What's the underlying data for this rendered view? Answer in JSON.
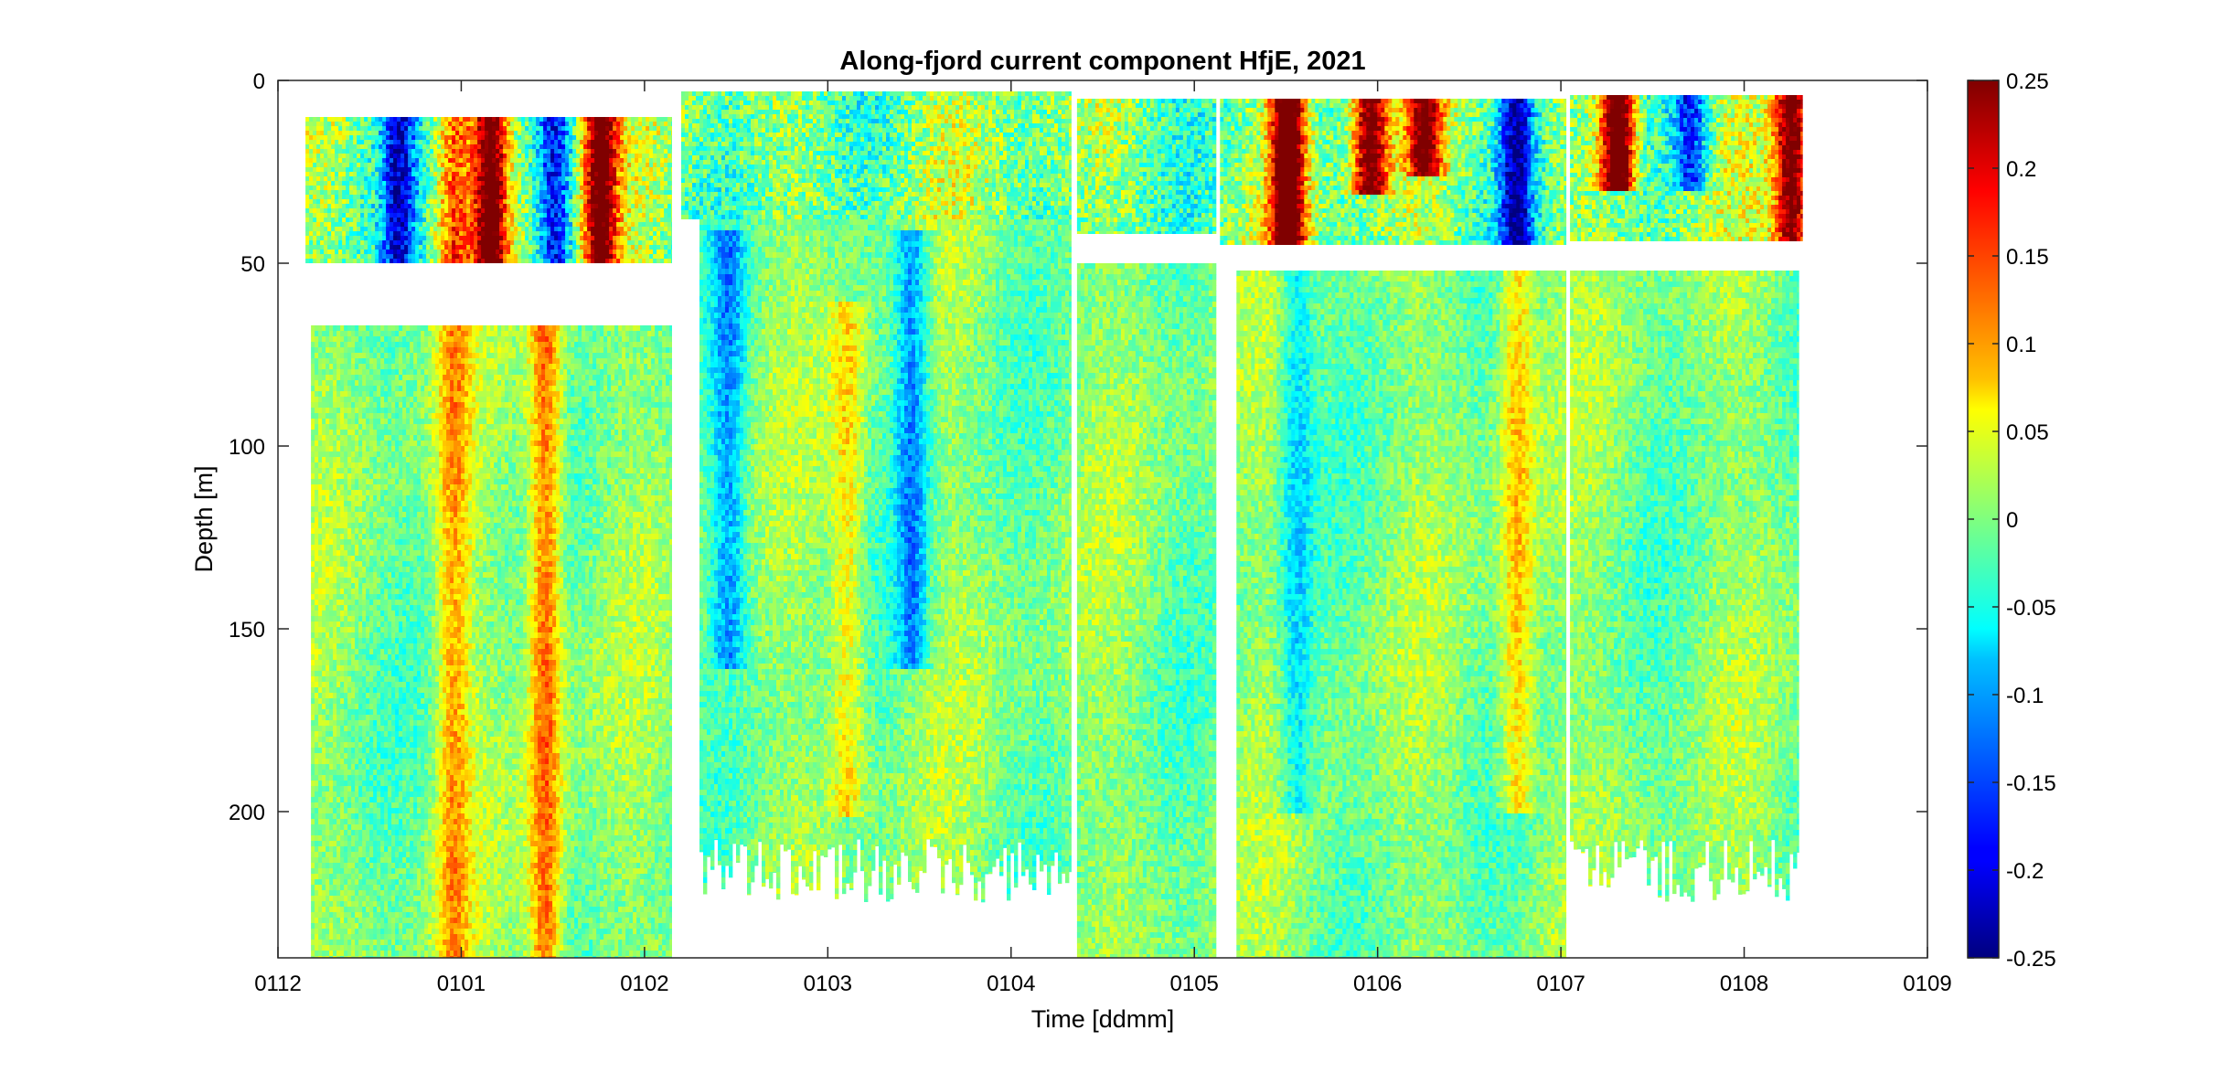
{
  "chart_data": {
    "type": "heatmap",
    "title": "Along-fjord current component HfjE, 2021",
    "xlabel": "Time [ddmm]",
    "ylabel": "Depth [m]",
    "x_ticks": [
      "0112",
      "0101",
      "0102",
      "0103",
      "0104",
      "0105",
      "0106",
      "0107",
      "0108",
      "0109"
    ],
    "y_ticks": [
      0,
      50,
      100,
      150,
      200
    ],
    "ylim": [
      0,
      240
    ],
    "y_reversed": true,
    "colorbar": {
      "min": -0.25,
      "max": 0.25,
      "colormap": "jet",
      "ticks": [
        "0.25",
        "0.2",
        "0.15",
        "0.1",
        "0.05",
        "0",
        "-0.05",
        "-0.1",
        "-0.15",
        "-0.2",
        "-0.25"
      ]
    },
    "deployments": [
      {
        "name": "deployment-1",
        "upper_bin": {
          "t_start": 0.15,
          "t_end": 2.15,
          "depth_top": 10,
          "depth_bottom": 50
        },
        "lower_bin": {
          "t_start": 0.18,
          "t_end": 2.15,
          "depth_top": 67,
          "depth_bottom": 240
        }
      },
      {
        "name": "deployment-2",
        "upper_bin": {
          "t_start": 2.2,
          "t_end": 4.33,
          "depth_top": 3,
          "depth_bottom": 38
        },
        "lower_bin": {
          "t_start": 2.3,
          "t_end": 4.33,
          "depth_top": 38,
          "depth_bottom": 225
        }
      },
      {
        "name": "deployment-3",
        "upper_bin": {
          "t_start": 4.36,
          "t_end": 5.12,
          "depth_top": 5,
          "depth_bottom": 42
        },
        "lower_bin": {
          "t_start": 4.36,
          "t_end": 5.12,
          "depth_top": 50,
          "depth_bottom": 240
        }
      },
      {
        "name": "deployment-4",
        "upper_bin": {
          "t_start": 5.14,
          "t_end": 7.03,
          "depth_top": 5,
          "depth_bottom": 45
        },
        "lower_bin": {
          "t_start": 5.23,
          "t_end": 7.03,
          "depth_top": 52,
          "depth_bottom": 240
        }
      },
      {
        "name": "deployment-5",
        "upper_bin": {
          "t_start": 7.05,
          "t_end": 8.32,
          "depth_top": 4,
          "depth_bottom": 44
        },
        "lower_bin": {
          "t_start": 7.05,
          "t_end": 8.3,
          "depth_top": 52,
          "depth_bottom": 225
        }
      }
    ],
    "features": [
      {
        "t": 0.95,
        "depth_top": 10,
        "depth_bottom": 240,
        "value": 0.1
      },
      {
        "t": 1.15,
        "depth_top": 10,
        "depth_bottom": 50,
        "value": 0.2
      },
      {
        "t": 1.45,
        "depth_top": 67,
        "depth_bottom": 240,
        "value": 0.15
      },
      {
        "t": 1.75,
        "depth_top": 10,
        "depth_bottom": 50,
        "value": 0.2
      },
      {
        "t": 0.65,
        "depth_top": 10,
        "depth_bottom": 50,
        "value": -0.12
      },
      {
        "t": 1.5,
        "depth_top": 10,
        "depth_bottom": 50,
        "value": -0.12
      },
      {
        "t": 2.45,
        "depth_top": 40,
        "depth_bottom": 160,
        "value": -0.1
      },
      {
        "t": 3.45,
        "depth_top": 40,
        "depth_bottom": 160,
        "value": -0.12
      },
      {
        "t": 3.1,
        "depth_top": 60,
        "depth_bottom": 200,
        "value": 0.08
      },
      {
        "t": 5.5,
        "depth_top": 5,
        "depth_bottom": 45,
        "value": 0.25
      },
      {
        "t": 5.95,
        "depth_top": 5,
        "depth_bottom": 30,
        "value": 0.2
      },
      {
        "t": 6.25,
        "depth_top": 5,
        "depth_bottom": 25,
        "value": 0.18
      },
      {
        "t": 6.75,
        "depth_top": 5,
        "depth_bottom": 45,
        "value": -0.15
      },
      {
        "t": 6.75,
        "depth_top": 52,
        "depth_bottom": 200,
        "value": 0.1
      },
      {
        "t": 5.55,
        "depth_top": 52,
        "depth_bottom": 200,
        "value": -0.08
      },
      {
        "t": 7.3,
        "depth_top": 4,
        "depth_bottom": 30,
        "value": 0.25
      },
      {
        "t": 7.7,
        "depth_top": 4,
        "depth_bottom": 30,
        "value": -0.12
      },
      {
        "t": 8.25,
        "depth_top": 4,
        "depth_bottom": 44,
        "value": 0.2
      }
    ]
  }
}
